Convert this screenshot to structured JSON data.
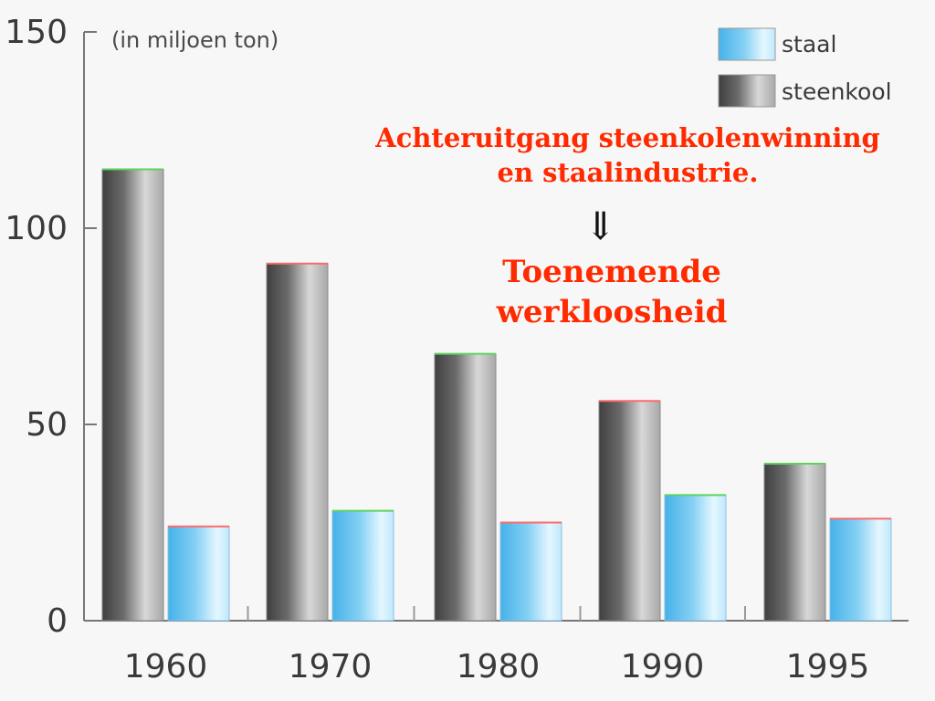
{
  "chart_data": {
    "type": "bar",
    "unit_label": "(in miljoen ton)",
    "categories": [
      "1960",
      "1970",
      "1980",
      "1990",
      "1995"
    ],
    "series": [
      {
        "name": "steenkool",
        "values": [
          115,
          91,
          68,
          56,
          40
        ]
      },
      {
        "name": "staal",
        "values": [
          24,
          28,
          25,
          32,
          26
        ]
      }
    ],
    "y_ticks": [
      0,
      50,
      100,
      150
    ],
    "ylim": [
      0,
      150
    ],
    "grid": false,
    "legend_position": "top-right",
    "colors": {
      "steenkool": "#6f6f6f",
      "staal": "#72c5ef"
    }
  },
  "annotations": {
    "line1": "Achteruitgang steenkolenwinning",
    "line2": "en staalindustrie.",
    "arrow": "⇓",
    "line3": "Toenemende",
    "line4": "werkloosheid"
  }
}
